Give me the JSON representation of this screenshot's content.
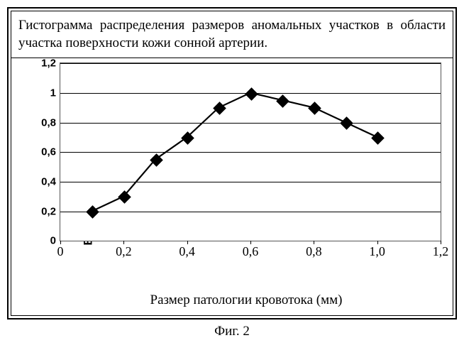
{
  "figure": {
    "title": "Гистограмма распределения размеров аномальных участков в области участка поверхности кожи сонной артерии.",
    "caption": "Фиг. 2",
    "chart": {
      "type": "line",
      "y_label": "Вероятность появления",
      "x_label": "Размер патологии кровотока (мм)",
      "xlim": [
        0,
        1.2
      ],
      "ylim": [
        0,
        1.2
      ],
      "x_ticks": [
        0,
        0.2,
        0.4,
        0.6,
        0.8,
        1.0,
        1.2
      ],
      "x_tick_labels": [
        "0",
        "0,2",
        "0,4",
        "0,6",
        "0,8",
        "1,0",
        "1,2"
      ],
      "y_ticks": [
        0,
        0.2,
        0.4,
        0.6,
        0.8,
        1.0,
        1.2
      ],
      "y_tick_labels": [
        "0",
        "0,2",
        "0,4",
        "0,6",
        "0,8",
        "1",
        "1,2"
      ],
      "grid_y": true,
      "grid_color": "#000000",
      "background_color": "#ffffff",
      "line_color": "#000000",
      "line_width": 2.2,
      "marker": {
        "shape": "diamond",
        "size": 11,
        "fill": "#000000",
        "stroke": "#000000"
      },
      "series": {
        "x": [
          0.1,
          0.2,
          0.3,
          0.4,
          0.5,
          0.6,
          0.7,
          0.8,
          0.9,
          1.0
        ],
        "y": [
          0.2,
          0.3,
          0.55,
          0.7,
          0.9,
          1.0,
          0.95,
          0.9,
          0.8,
          0.7
        ]
      },
      "tick_fontsize": 15,
      "label_fontsize": 18,
      "title_fontsize": 19
    }
  }
}
